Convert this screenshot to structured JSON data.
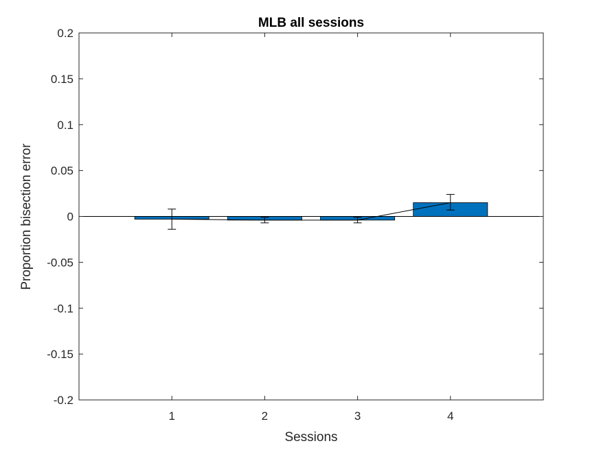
{
  "chart_data": {
    "type": "bar",
    "title": "MLB all sessions",
    "xlabel": "Sessions",
    "ylabel": "Proportion bisection error",
    "categories": [
      "1",
      "2",
      "3",
      "4"
    ],
    "values": [
      -0.003,
      -0.004,
      -0.004,
      0.015
    ],
    "error_low": [
      -0.014,
      -0.007,
      -0.007,
      0.007
    ],
    "error_high": [
      0.008,
      -0.001,
      -0.001,
      0.024
    ],
    "xlim": [
      0,
      5
    ],
    "ylim": [
      -0.2,
      0.2
    ],
    "yticks": [
      0.2,
      0.15,
      0.1,
      0.05,
      0,
      -0.05,
      -0.1,
      -0.15,
      -0.2
    ],
    "ytick_labels": [
      "0.2",
      "0.15",
      "0.1",
      "0.05",
      "0",
      "-0.05",
      "-0.1",
      "-0.15",
      "-0.2"
    ],
    "grid": false,
    "bar_color": "#0072bd",
    "trend_line": true
  }
}
